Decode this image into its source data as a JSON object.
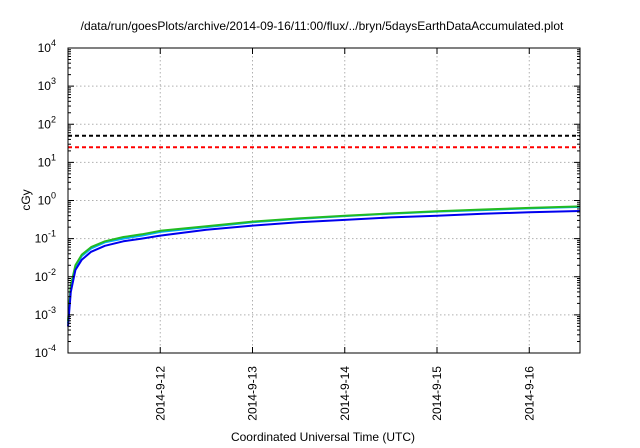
{
  "chart_data": {
    "type": "line",
    "title": "/data/run/goesPlots/archive/2014-09-16/11:00/flux/../bryn/5daysEarthDataAccumulated.plot",
    "xlabel": "Coordinated Universal Time (UTC)",
    "ylabel": "cGy",
    "yscale": "log",
    "ylim": [
      0.0001,
      10000
    ],
    "xlim": [
      0.0,
      5.55
    ],
    "x_ticks": [
      {
        "x": 1,
        "label": "2014-9-12"
      },
      {
        "x": 2,
        "label": "2014-9-13"
      },
      {
        "x": 3,
        "label": "2014-9-14"
      },
      {
        "x": 4,
        "label": "2014-9-15"
      },
      {
        "x": 5,
        "label": "2014-9-16"
      }
    ],
    "y_ticks": [
      {
        "base": "10",
        "exp": "-4",
        "value": 0.0001
      },
      {
        "base": "10",
        "exp": "-3",
        "value": 0.001
      },
      {
        "base": "10",
        "exp": "-2",
        "value": 0.01
      },
      {
        "base": "10",
        "exp": "-1",
        "value": 0.1
      },
      {
        "base": "10",
        "exp": "0",
        "value": 1
      },
      {
        "base": "10",
        "exp": "1",
        "value": 10
      },
      {
        "base": "10",
        "exp": "2",
        "value": 100
      },
      {
        "base": "10",
        "exp": "3",
        "value": 1000
      },
      {
        "base": "10",
        "exp": "4",
        "value": 10000
      }
    ],
    "grid": true,
    "thresholds": [
      {
        "value": 50,
        "color": "#000000",
        "style": "dashed"
      },
      {
        "value": 25,
        "color": "#ff0000",
        "style": "dashed"
      }
    ],
    "series": [
      {
        "color": "#00aaff",
        "x": [
          0.0,
          0.03,
          0.08,
          0.15,
          0.25,
          0.4,
          0.6,
          0.8,
          1.0,
          1.5,
          2.0,
          2.5,
          3.0,
          3.5,
          4.0,
          4.5,
          5.0,
          5.55
        ],
        "y": [
          0.0006,
          0.005,
          0.018,
          0.035,
          0.055,
          0.08,
          0.1,
          0.12,
          0.15,
          0.2,
          0.27,
          0.33,
          0.39,
          0.45,
          0.51,
          0.56,
          0.62,
          0.68
        ]
      },
      {
        "color": "#22bb22",
        "x": [
          0.0,
          0.03,
          0.08,
          0.15,
          0.25,
          0.4,
          0.6,
          0.8,
          1.0,
          1.5,
          2.0,
          2.5,
          3.0,
          3.5,
          4.0,
          4.5,
          5.0,
          5.55
        ],
        "y": [
          0.0007,
          0.006,
          0.02,
          0.038,
          0.06,
          0.085,
          0.11,
          0.13,
          0.16,
          0.21,
          0.28,
          0.34,
          0.4,
          0.46,
          0.52,
          0.58,
          0.64,
          0.7
        ]
      },
      {
        "color": "#0000ee",
        "x": [
          0.0,
          0.03,
          0.08,
          0.15,
          0.25,
          0.4,
          0.6,
          0.8,
          1.0,
          1.5,
          2.0,
          2.5,
          3.0,
          3.5,
          4.0,
          4.5,
          5.0,
          5.55
        ],
        "y": [
          0.0005,
          0.004,
          0.015,
          0.028,
          0.045,
          0.065,
          0.085,
          0.1,
          0.12,
          0.17,
          0.22,
          0.27,
          0.31,
          0.36,
          0.4,
          0.45,
          0.49,
          0.53
        ]
      }
    ]
  }
}
